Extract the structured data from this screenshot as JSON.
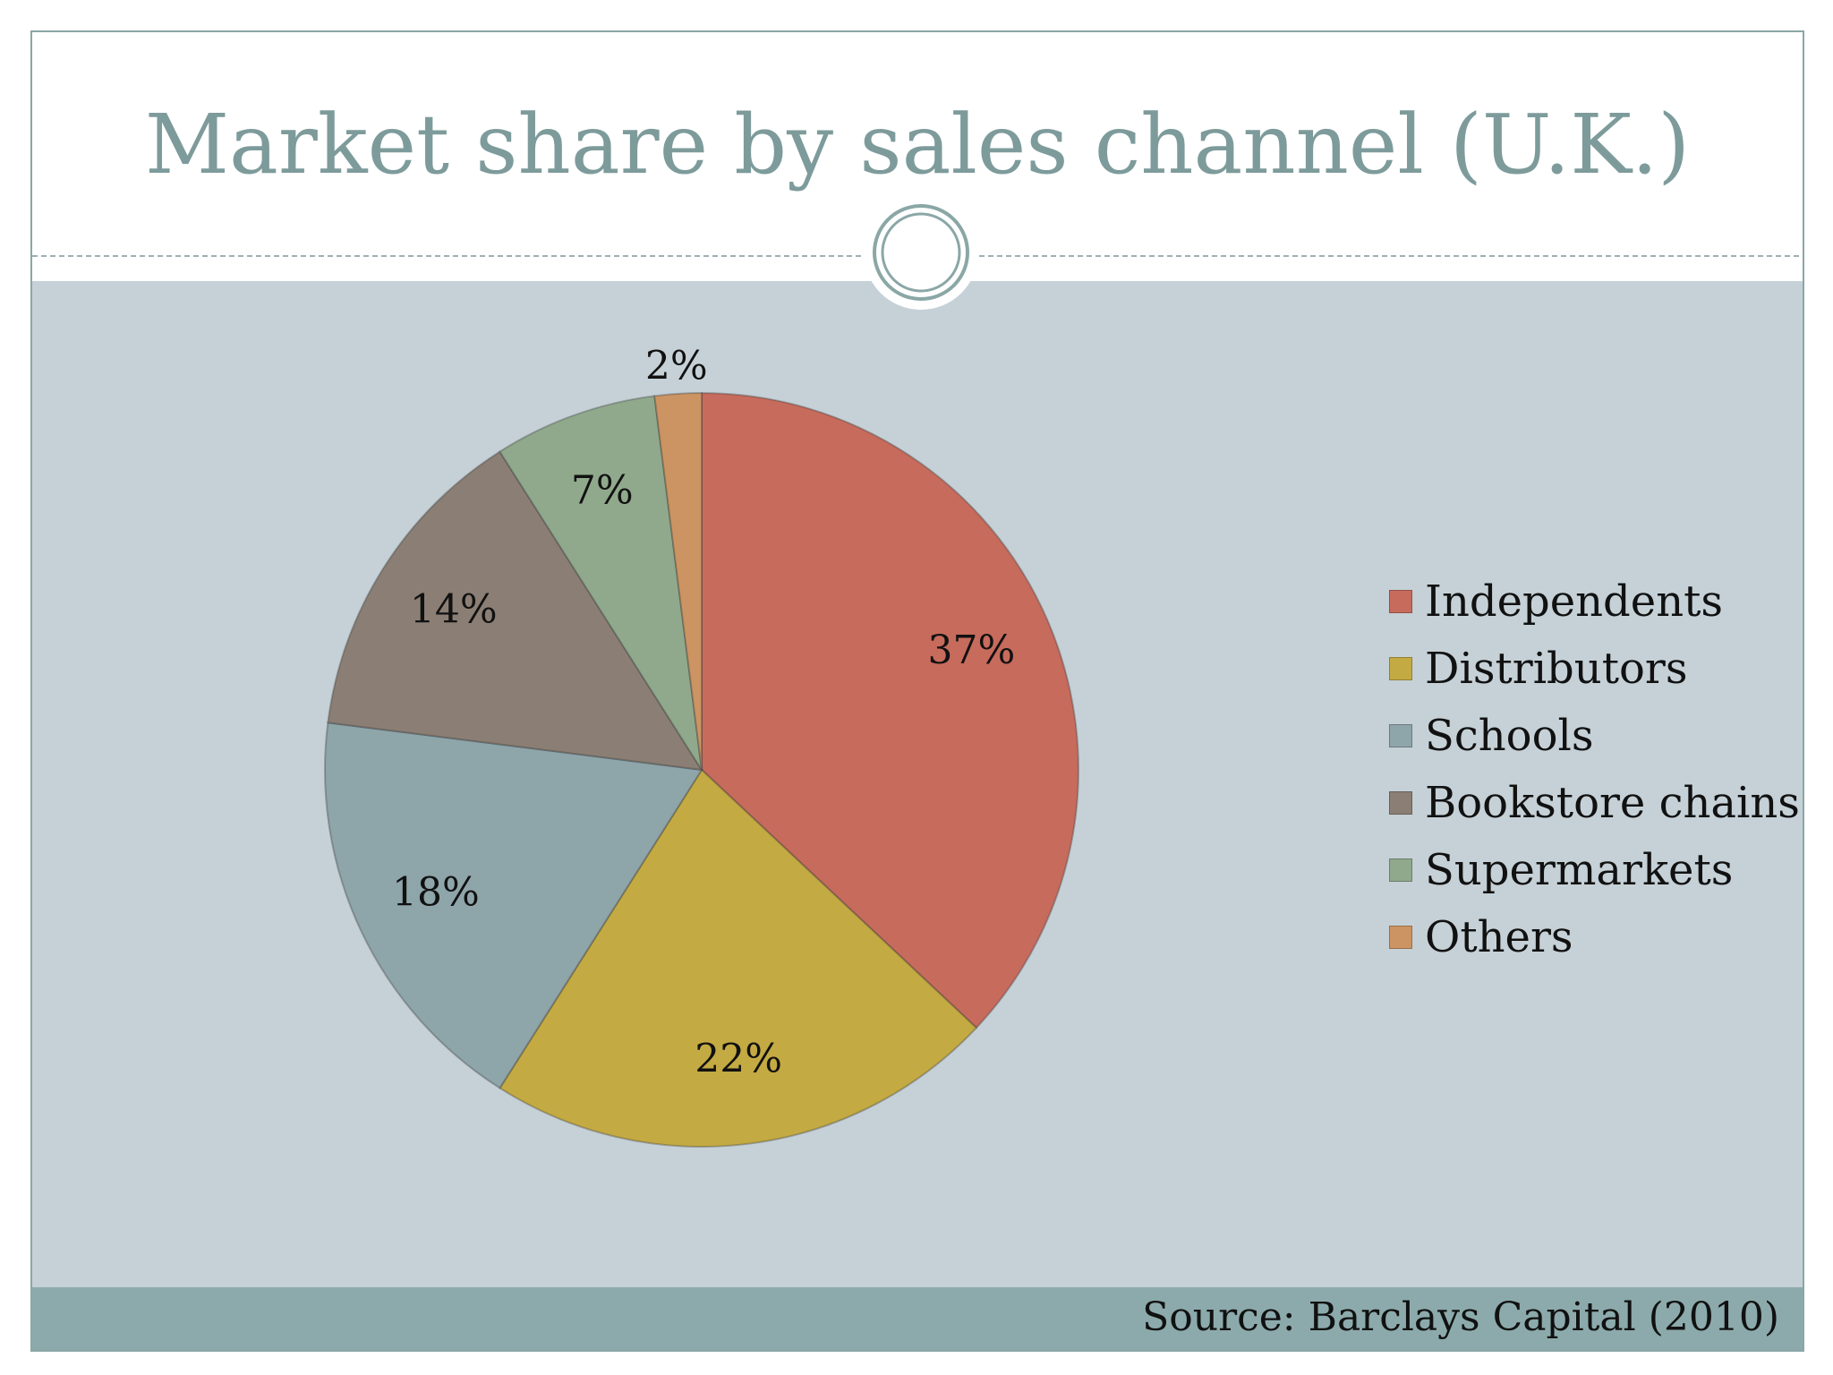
{
  "title": "Market share by sales channel (U.K.)",
  "source": "Source: Barclays Capital (2010)",
  "colors": {
    "title": "#7e9b9b",
    "content_background": "#c5d1d7",
    "footer_bar": "#8caaab"
  },
  "chart_data": {
    "type": "pie",
    "title": "Market share by sales channel (U.K.)",
    "legend_position": "right",
    "slices": [
      {
        "name": "Independents",
        "value": 37,
        "label": "37%",
        "color": "#c76b5c"
      },
      {
        "name": "Distributors",
        "value": 22,
        "label": "22%",
        "color": "#c4aa42"
      },
      {
        "name": "Schools",
        "value": 18,
        "label": "18%",
        "color": "#8ea5aa"
      },
      {
        "name": "Bookstore chains",
        "value": 14,
        "label": "14%",
        "color": "#8b7f75"
      },
      {
        "name": "Supermarkets",
        "value": 7,
        "label": "7%",
        "color": "#90a98c"
      },
      {
        "name": "Others",
        "value": 2,
        "label": "2%",
        "color": "#cc9462"
      }
    ]
  }
}
